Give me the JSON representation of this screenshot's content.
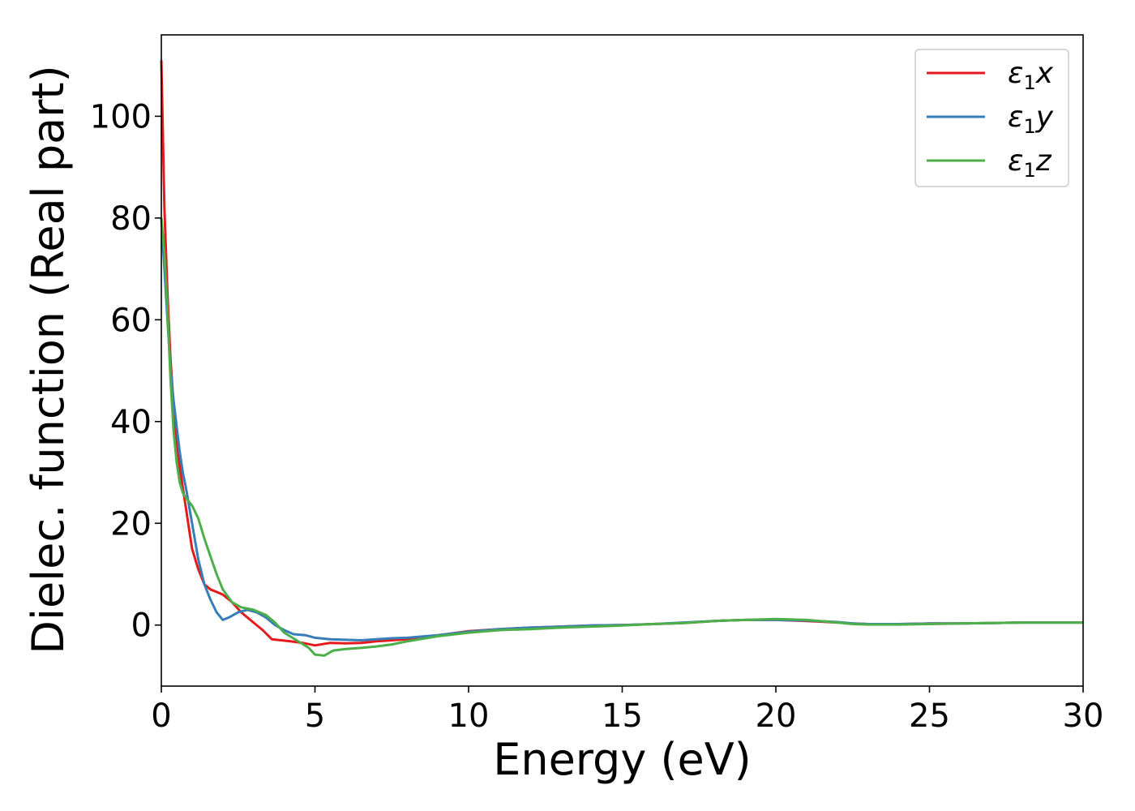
{
  "chart_data": {
    "type": "line",
    "title": "",
    "xlabel": "Energy (eV)",
    "ylabel": "Dielec. function (Real part)",
    "xlim": [
      0,
      30
    ],
    "ylim": [
      -12,
      116
    ],
    "xticks": [
      0,
      5,
      10,
      15,
      20,
      25,
      30
    ],
    "yticks": [
      0,
      20,
      40,
      60,
      80,
      100
    ],
    "grid": false,
    "legend_position": "top-right",
    "series": [
      {
        "name": "ε1x",
        "name_base": "ε",
        "name_sub": "1",
        "name_suffix": "x",
        "color": "#e41a1c",
        "x": [
          0,
          0.1,
          0.2,
          0.3,
          0.4,
          0.5,
          0.6,
          0.7,
          0.8,
          1.0,
          1.2,
          1.4,
          1.6,
          1.8,
          2.0,
          2.3,
          2.6,
          3.0,
          3.3,
          3.6,
          3.9,
          4.2,
          4.6,
          5.0,
          5.5,
          6.0,
          6.5,
          7.0,
          7.5,
          8.0,
          9.0,
          10.0,
          11.0,
          12.0,
          13.0,
          14.0,
          15.0,
          16.0,
          17.0,
          18.0,
          19.0,
          20.0,
          21.0,
          22.0,
          22.5,
          23.0,
          24.0,
          25.0,
          26.0,
          27.0,
          28.0,
          29.0,
          30.0
        ],
        "y": [
          111,
          82,
          65,
          52,
          43,
          36,
          31,
          27,
          23,
          15,
          11,
          8,
          7,
          6.5,
          6,
          4.5,
          2.5,
          0.5,
          -1,
          -2.8,
          -3,
          -3.2,
          -3.5,
          -4,
          -3.5,
          -3.6,
          -3.5,
          -3.2,
          -3.0,
          -2.8,
          -2,
          -1.2,
          -0.8,
          -0.5,
          -0.3,
          -0.1,
          0,
          0.2,
          0.4,
          0.8,
          1.0,
          1.0,
          0.8,
          0.5,
          0.3,
          0.2,
          0.2,
          0.3,
          0.3,
          0.4,
          0.5,
          0.5,
          0.5
        ]
      },
      {
        "name": "ε1y",
        "name_base": "ε",
        "name_sub": "1",
        "name_suffix": "y",
        "color": "#377eb8",
        "x": [
          0,
          0.1,
          0.2,
          0.3,
          0.4,
          0.5,
          0.6,
          0.7,
          0.8,
          1.0,
          1.2,
          1.4,
          1.6,
          1.8,
          2.0,
          2.2,
          2.5,
          2.8,
          3.1,
          3.4,
          3.7,
          4.0,
          4.3,
          4.7,
          5.0,
          5.5,
          6.0,
          6.5,
          7.0,
          7.5,
          8.0,
          9.0,
          10.0,
          11.0,
          12.0,
          13.0,
          14.0,
          15.0,
          16.0,
          17.0,
          18.0,
          19.0,
          20.0,
          21.0,
          22.0,
          22.5,
          23.0,
          24.0,
          25.0,
          26.0,
          27.0,
          28.0,
          29.0,
          30.0
        ],
        "y": [
          80,
          70,
          60,
          50,
          44,
          39,
          34,
          30,
          27,
          20,
          13,
          8,
          5,
          2.5,
          1,
          1.5,
          2.5,
          3,
          2.5,
          1.5,
          0,
          -1,
          -1.8,
          -2,
          -2.5,
          -2.8,
          -2.9,
          -3,
          -2.8,
          -2.6,
          -2.5,
          -2,
          -1.3,
          -0.8,
          -0.5,
          -0.3,
          -0.1,
          0,
          0.2,
          0.5,
          0.8,
          1.0,
          1.0,
          0.9,
          0.6,
          0.3,
          0.2,
          0.2,
          0.3,
          0.3,
          0.4,
          0.5,
          0.5,
          0.5
        ]
      },
      {
        "name": "ε1z",
        "name_base": "ε",
        "name_sub": "1",
        "name_suffix": "z",
        "color": "#4daf4a",
        "x": [
          0,
          0.1,
          0.2,
          0.3,
          0.4,
          0.5,
          0.6,
          0.7,
          0.8,
          1.0,
          1.2,
          1.4,
          1.6,
          1.8,
          2.0,
          2.3,
          2.6,
          3.0,
          3.4,
          3.7,
          4.0,
          4.4,
          4.8,
          5.0,
          5.3,
          5.6,
          6.0,
          6.5,
          7.0,
          7.5,
          8.0,
          9.0,
          10.0,
          11.0,
          12.0,
          13.0,
          14.0,
          15.0,
          16.0,
          17.0,
          18.0,
          19.0,
          20.0,
          21.0,
          22.0,
          22.5,
          23.0,
          24.0,
          25.0,
          26.0,
          27.0,
          28.0,
          29.0,
          30.0
        ],
        "y": [
          80,
          73,
          62,
          48,
          38,
          32,
          28,
          26,
          25,
          23.5,
          21,
          17,
          13.5,
          10,
          7,
          4.5,
          3.5,
          3,
          2,
          0.5,
          -1.5,
          -3,
          -4.5,
          -5.8,
          -6,
          -5,
          -4.7,
          -4.5,
          -4.2,
          -3.8,
          -3.2,
          -2.2,
          -1.5,
          -1,
          -0.8,
          -0.5,
          -0.3,
          -0.1,
          0.2,
          0.4,
          0.8,
          1.0,
          1.2,
          1.0,
          0.5,
          0.2,
          0.1,
          0.1,
          0.2,
          0.3,
          0.4,
          0.5,
          0.5,
          0.5
        ]
      }
    ]
  }
}
